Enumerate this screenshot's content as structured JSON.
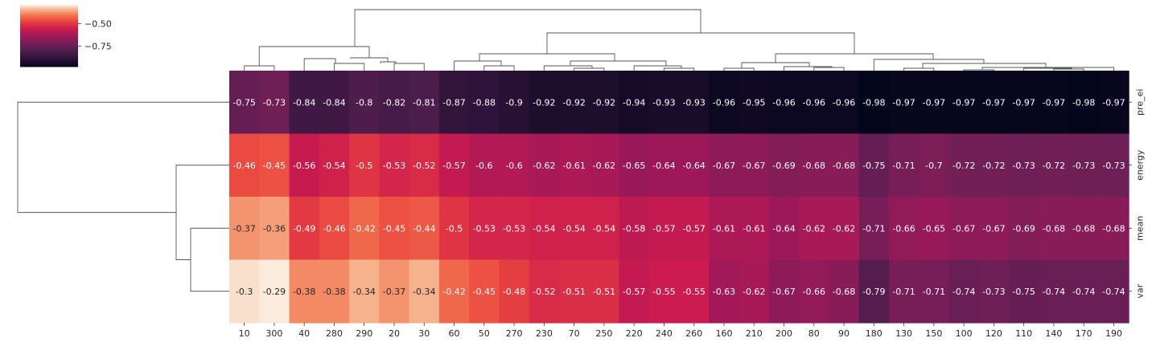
{
  "chart_data": {
    "type": "heatmap",
    "title": "",
    "xlabel": "",
    "ylabel": "",
    "columns": [
      "10",
      "300",
      "40",
      "280",
      "290",
      "20",
      "30",
      "60",
      "50",
      "270",
      "230",
      "70",
      "250",
      "220",
      "240",
      "260",
      "160",
      "210",
      "200",
      "80",
      "90",
      "180",
      "130",
      "150",
      "100",
      "120",
      "110",
      "140",
      "170",
      "190"
    ],
    "rows": [
      "pre_ei",
      "energy",
      "mean",
      "var"
    ],
    "values": [
      [
        -0.75,
        -0.73,
        -0.84,
        -0.84,
        -0.8,
        -0.82,
        -0.81,
        -0.87,
        -0.88,
        -0.9,
        -0.92,
        -0.92,
        -0.92,
        -0.94,
        -0.93,
        -0.93,
        -0.96,
        -0.95,
        -0.96,
        -0.96,
        -0.96,
        -0.98,
        -0.97,
        -0.97,
        -0.97,
        -0.97,
        -0.97,
        -0.97,
        -0.98,
        -0.97
      ],
      [
        -0.46,
        -0.45,
        -0.56,
        -0.54,
        -0.5,
        -0.53,
        -0.52,
        -0.57,
        -0.6,
        -0.6,
        -0.62,
        -0.61,
        -0.62,
        -0.65,
        -0.64,
        -0.64,
        -0.67,
        -0.67,
        -0.69,
        -0.68,
        -0.68,
        -0.75,
        -0.71,
        -0.7,
        -0.72,
        -0.72,
        -0.73,
        -0.72,
        -0.73,
        -0.73
      ],
      [
        -0.37,
        -0.36,
        -0.49,
        -0.46,
        -0.42,
        -0.45,
        -0.44,
        -0.5,
        -0.53,
        -0.53,
        -0.54,
        -0.54,
        -0.54,
        -0.58,
        -0.57,
        -0.57,
        -0.61,
        -0.61,
        -0.64,
        -0.62,
        -0.62,
        -0.71,
        -0.66,
        -0.65,
        -0.67,
        -0.67,
        -0.69,
        -0.68,
        -0.68,
        -0.68
      ],
      [
        -0.3,
        -0.29,
        -0.38,
        -0.38,
        -0.34,
        -0.37,
        -0.34,
        -0.42,
        -0.45,
        -0.48,
        -0.52,
        -0.51,
        -0.51,
        -0.57,
        -0.55,
        -0.55,
        -0.63,
        -0.62,
        -0.67,
        -0.66,
        -0.68,
        -0.79,
        -0.71,
        -0.71,
        -0.74,
        -0.73,
        -0.75,
        -0.74,
        -0.74,
        -0.74
      ]
    ],
    "value_labels": [
      [
        "-0.75",
        "-0.73",
        "-0.84",
        "-0.84",
        "-0.8",
        "-0.82",
        "-0.81",
        "-0.87",
        "-0.88",
        "-0.9",
        "-0.92",
        "-0.92",
        "-0.92",
        "-0.94",
        "-0.93",
        "-0.93",
        "-0.96",
        "-0.95",
        "-0.96",
        "-0.96",
        "-0.96",
        "-0.98",
        "-0.97",
        "-0.97",
        "-0.97",
        "-0.97",
        "-0.97",
        "-0.97",
        "-0.98",
        "-0.97"
      ],
      [
        "-0.46",
        "-0.45",
        "-0.56",
        "-0.54",
        "-0.5",
        "-0.53",
        "-0.52",
        "-0.57",
        "-0.6",
        "-0.6",
        "-0.62",
        "-0.61",
        "-0.62",
        "-0.65",
        "-0.64",
        "-0.64",
        "-0.67",
        "-0.67",
        "-0.69",
        "-0.68",
        "-0.68",
        "-0.75",
        "-0.71",
        "-0.7",
        "-0.72",
        "-0.72",
        "-0.73",
        "-0.72",
        "-0.73",
        "-0.73"
      ],
      [
        "-0.37",
        "-0.36",
        "-0.49",
        "-0.46",
        "-0.42",
        "-0.45",
        "-0.44",
        "-0.5",
        "-0.53",
        "-0.53",
        "-0.54",
        "-0.54",
        "-0.54",
        "-0.58",
        "-0.57",
        "-0.57",
        "-0.61",
        "-0.61",
        "-0.64",
        "-0.62",
        "-0.62",
        "-0.71",
        "-0.66",
        "-0.65",
        "-0.67",
        "-0.67",
        "-0.69",
        "-0.68",
        "-0.68",
        "-0.68"
      ],
      [
        "-0.3",
        "-0.29",
        "-0.38",
        "-0.38",
        "-0.34",
        "-0.37",
        "-0.34",
        "-0.42",
        "-0.45",
        "-0.48",
        "-0.52",
        "-0.51",
        "-0.51",
        "-0.57",
        "-0.55",
        "-0.55",
        "-0.63",
        "-0.62",
        "-0.67",
        "-0.66",
        "-0.68",
        "-0.79",
        "-0.71",
        "-0.71",
        "-0.74",
        "-0.73",
        "-0.75",
        "-0.74",
        "-0.74",
        "-0.74"
      ]
    ],
    "vmin": -0.98,
    "vmax": -0.29,
    "colorbar": {
      "ticks": [
        -0.5,
        -0.75
      ],
      "tick_labels": [
        "−0.50",
        "−0.75"
      ],
      "placement": "top-left"
    },
    "colormap": "rocket",
    "row_dendrogram_order": [
      "pre_ei",
      "energy",
      "mean",
      "var"
    ],
    "dendrogram_color": "#555555"
  }
}
